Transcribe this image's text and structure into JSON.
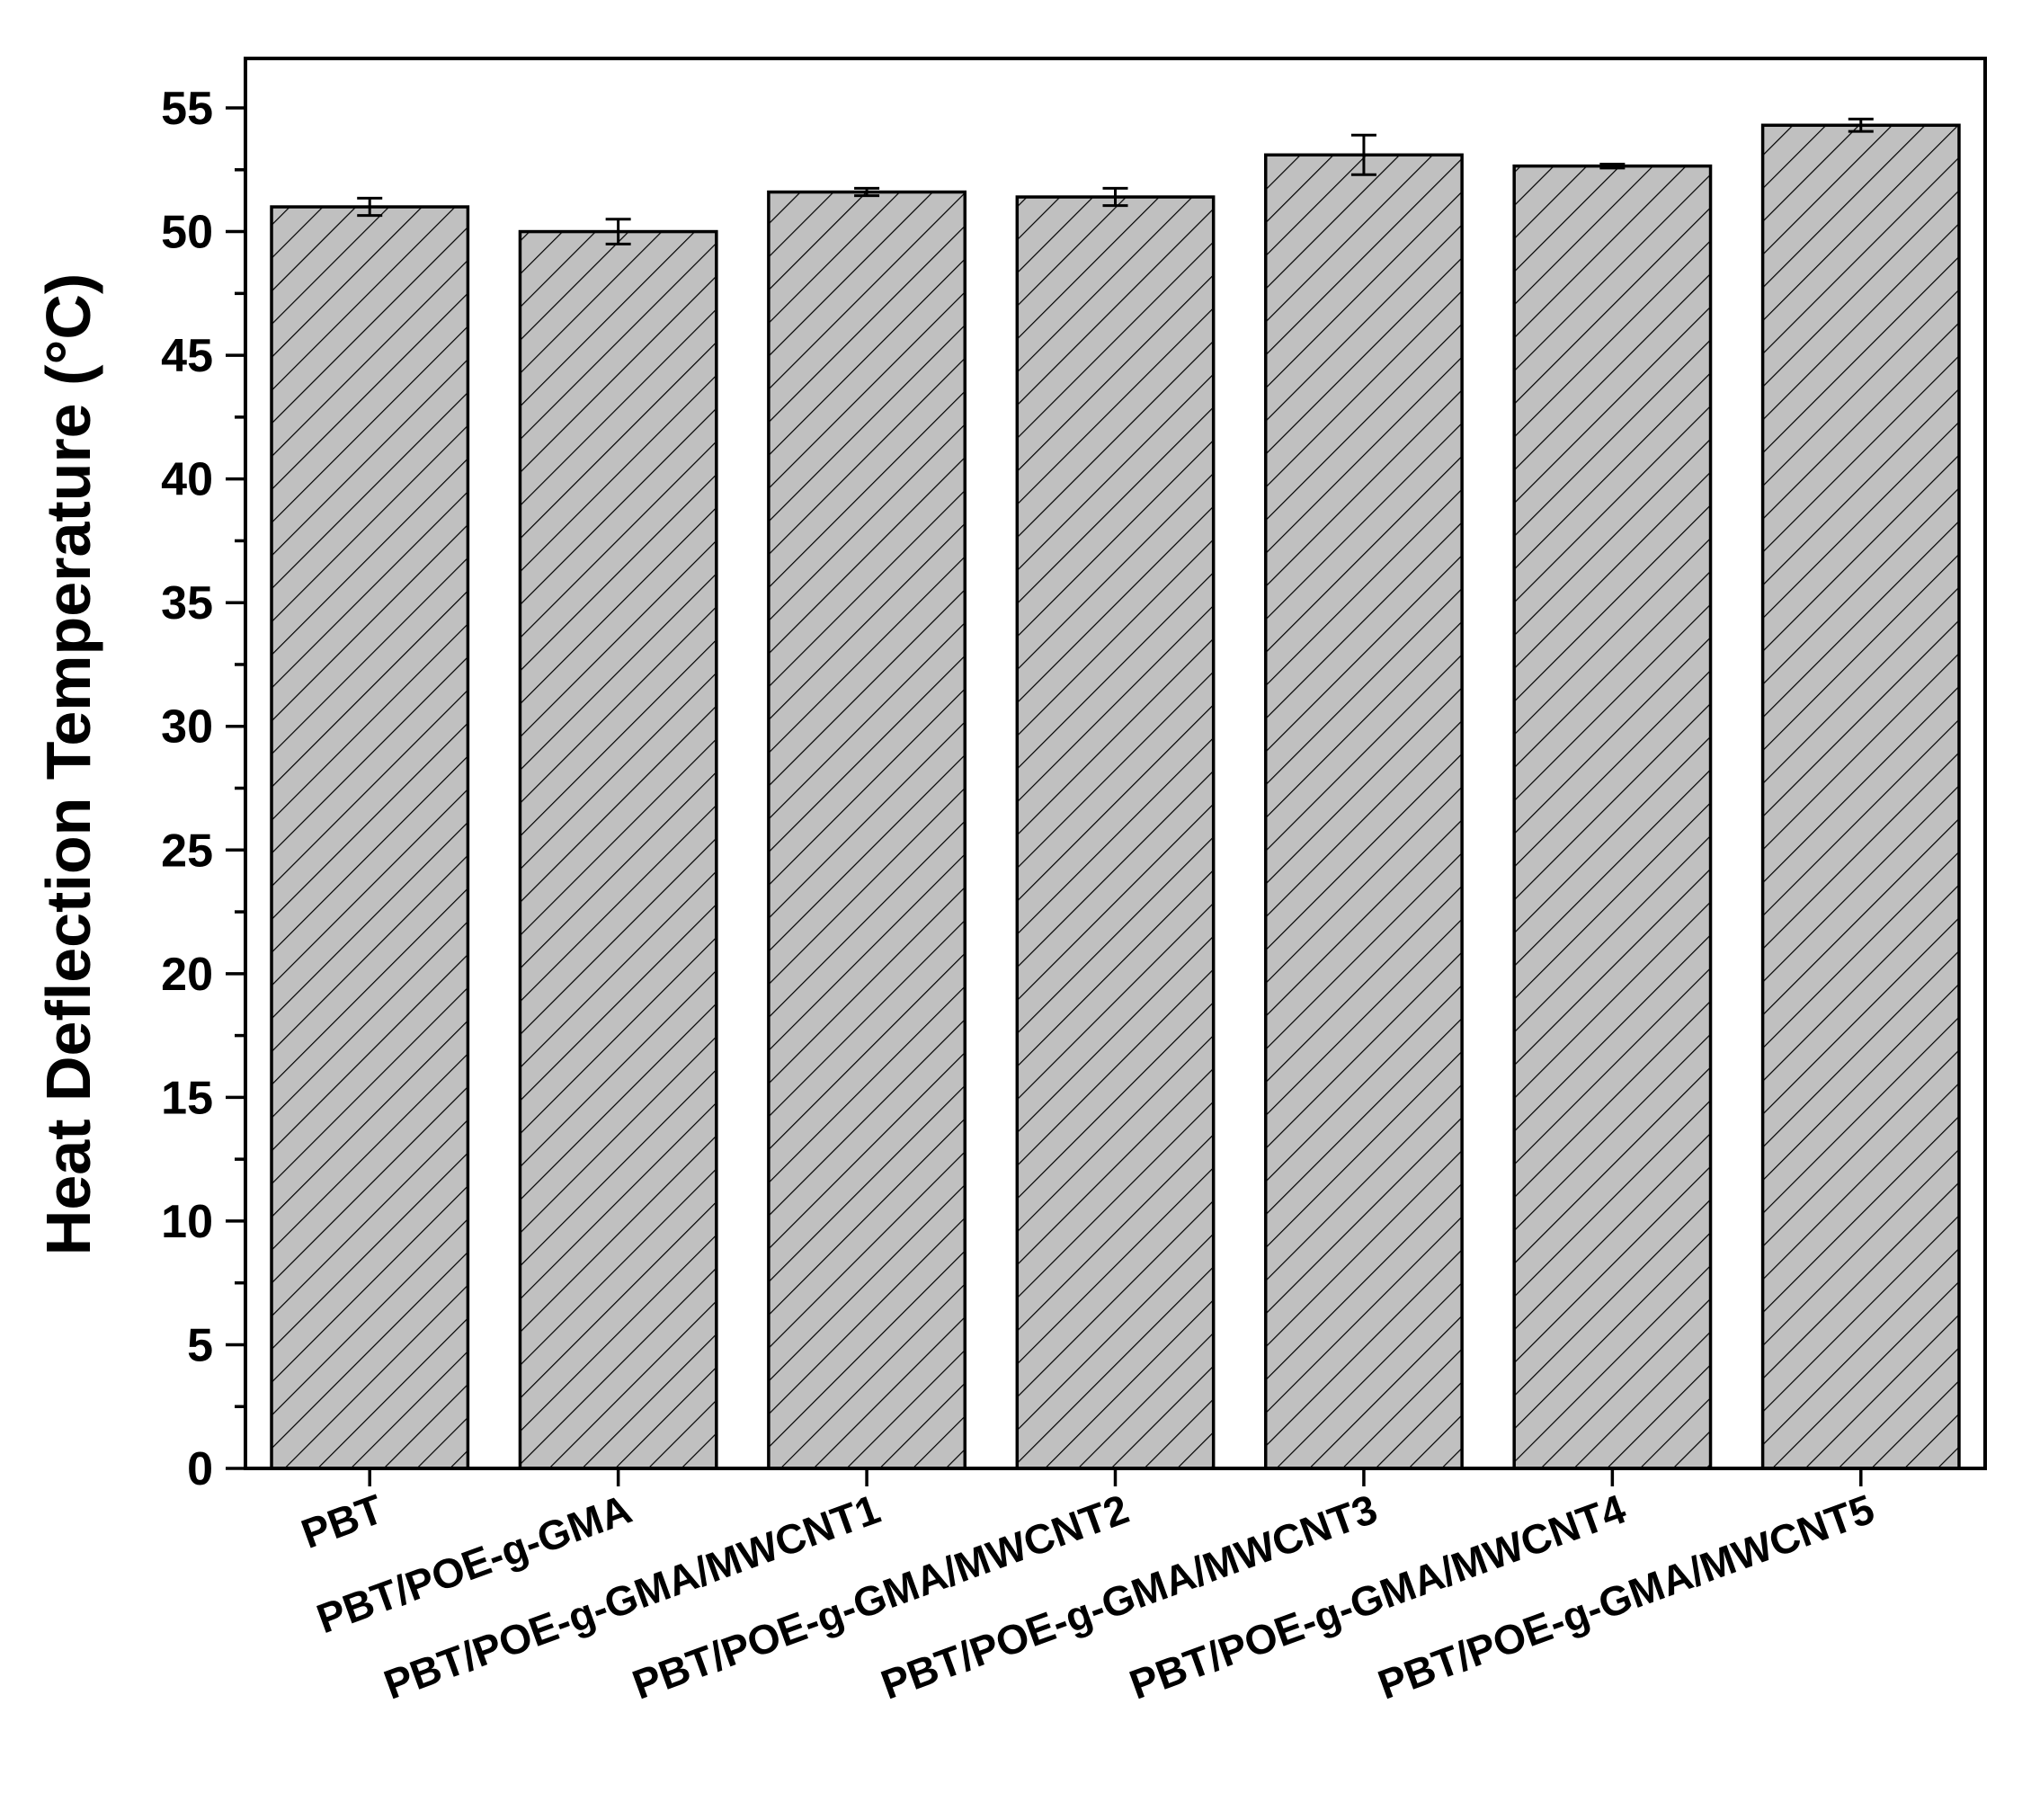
{
  "chart_data": {
    "type": "bar",
    "title": "",
    "xlabel": "",
    "ylabel": "Heat Deflection Temperature (°C)",
    "ylim": [
      0,
      57
    ],
    "yticks": [
      0,
      5,
      10,
      15,
      20,
      25,
      30,
      35,
      40,
      45,
      50,
      55
    ],
    "categories": [
      "PBT",
      "PBT/POE-g-GMA",
      "PBT/POE-g-GMA/MWCNT1",
      "PBT/POE-g-GMA/MWCNT2",
      "PBT/POE-g-GMA/MWCNT3",
      "PBT/POE-g-GMA/MWCNT4",
      "PBT/POE-g-GMA/MWCNT5"
    ],
    "values": [
      51.0,
      50.0,
      51.6,
      51.4,
      53.1,
      52.65,
      54.3
    ],
    "errors": [
      0.35,
      0.5,
      0.15,
      0.35,
      0.8,
      0.08,
      0.25
    ],
    "bar_fill": "#c0c0c0",
    "hatch": "diagonal",
    "grid": false,
    "legend": "none"
  }
}
